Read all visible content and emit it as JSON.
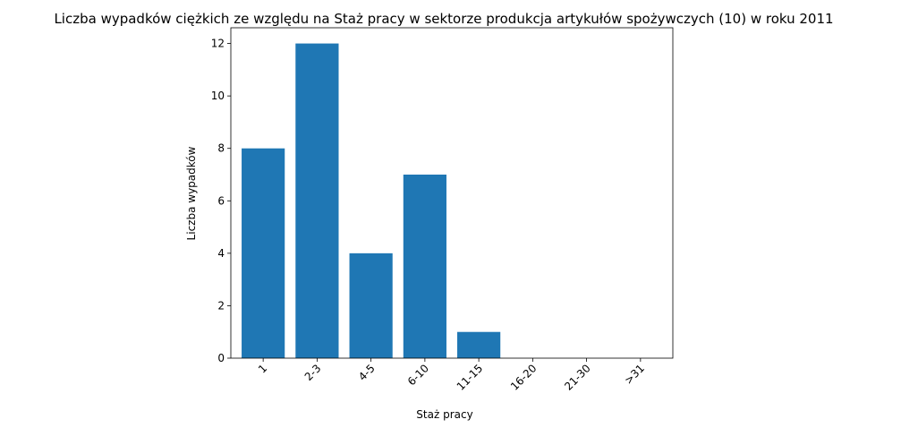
{
  "chart_data": {
    "type": "bar",
    "title": "Liczba wypadków ciężkich ze względu na Staż pracy w sektorze produkcja artykułów spożywczych  (10)   w roku 2011",
    "xlabel": "Staż pracy",
    "ylabel": "Liczba wypadków",
    "categories": [
      "1",
      "2-3",
      "4-5",
      "6-10",
      "11-15",
      "16-20",
      "21-30",
      ">31"
    ],
    "values": [
      8,
      12,
      4,
      7,
      1,
      0,
      0,
      0
    ],
    "ylim": [
      0,
      12.6
    ],
    "yticks": [
      0,
      2,
      4,
      6,
      8,
      10,
      12
    ],
    "bar_color": "#1f77b4",
    "grid": false
  }
}
